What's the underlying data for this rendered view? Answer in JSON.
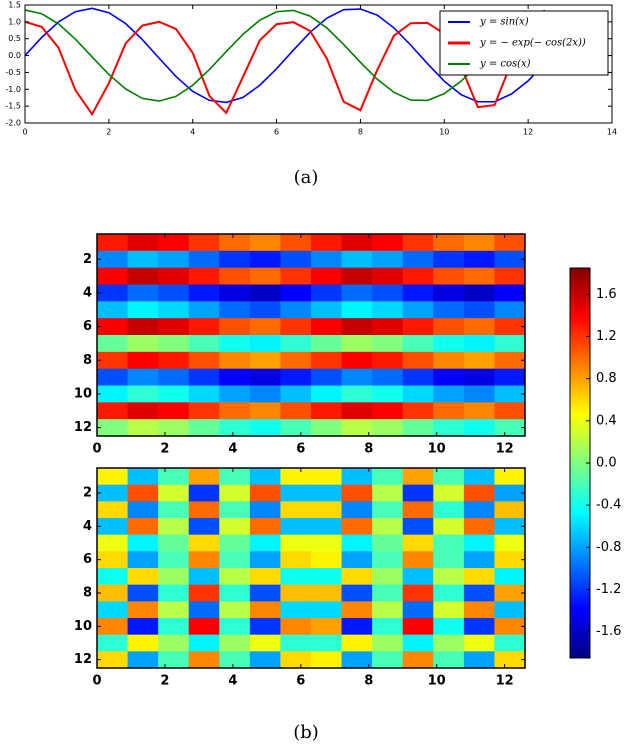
{
  "captions": [
    "(a)",
    "(b)"
  ],
  "chart_data": [
    {
      "type": "line",
      "x": [
        0,
        0.4,
        0.8,
        1.2,
        1.6,
        2.0,
        2.4,
        2.8,
        3.2,
        3.6,
        4.0,
        4.4,
        4.8,
        5.2,
        5.6,
        6.0,
        6.4,
        6.8,
        7.2,
        7.6,
        8.0,
        8.4,
        8.8,
        9.2,
        9.6,
        10.0,
        10.4,
        10.8,
        11.2,
        11.6,
        12.0,
        12.4
      ],
      "series": [
        {
          "name": "y = sin(x)",
          "color": "#0000ff",
          "values": [
            0,
            0.54,
            1.0,
            1.3,
            1.4,
            1.27,
            0.95,
            0.47,
            -0.08,
            -0.62,
            -1.06,
            -1.33,
            -1.39,
            -1.24,
            -0.88,
            -0.39,
            0.16,
            0.69,
            1.11,
            1.36,
            1.38,
            1.2,
            0.82,
            0.31,
            -0.24,
            -0.76,
            -1.16,
            -1.37,
            -1.37,
            -1.14,
            -0.75,
            -0.23
          ]
        },
        {
          "name": "y = − exp(− cos(2x))",
          "color": "#ff0000",
          "values": [
            1.0,
            0.85,
            0.23,
            -1.02,
            -1.74,
            -0.82,
            0.36,
            0.89,
            1.0,
            0.79,
            0.08,
            -1.2,
            -1.7,
            -0.63,
            0.45,
            0.93,
            0.99,
            0.73,
            -0.09,
            -1.37,
            -1.62,
            -0.43,
            0.59,
            0.96,
            0.97,
            0.65,
            -0.32,
            -1.53,
            -1.47,
            -0.21,
            0.67,
            0.97
          ]
        },
        {
          "name": "y = cos(x)",
          "color": "#008000",
          "values": [
            1.35,
            1.24,
            0.94,
            0.49,
            -0.04,
            -0.56,
            -0.99,
            -1.27,
            -1.35,
            -1.21,
            -0.88,
            -0.41,
            0.12,
            0.63,
            1.05,
            1.3,
            1.34,
            1.17,
            0.82,
            0.33,
            -0.2,
            -0.7,
            -1.09,
            -1.32,
            -1.33,
            -1.13,
            -0.76,
            -0.28,
            0.24,
            0.74,
            1.14,
            1.34
          ]
        }
      ],
      "xlim": [
        0,
        14
      ],
      "xticks": [
        0,
        2,
        4,
        6,
        8,
        10,
        12,
        14
      ],
      "ylim": [
        -2.0,
        1.5
      ],
      "yticks": [
        {
          "value": -2.0,
          "label": "-2.0"
        },
        -1.5,
        {
          "value": -1.0,
          "label": "-1.0"
        },
        -0.5,
        {
          "value": 0.0,
          "label": "0.0"
        },
        0.5,
        {
          "value": 1.0,
          "label": "1.0"
        },
        1.5
      ],
      "legend": "upper right"
    },
    {
      "type": "heatmap",
      "colormap": "jet",
      "zlim": [
        -1.85,
        1.85
      ],
      "x": [
        0.45,
        1.35,
        2.25,
        3.15,
        4.05,
        4.95,
        5.85,
        6.75,
        7.65,
        8.55,
        9.45,
        10.35,
        11.25,
        12.15
      ],
      "y": [
        1,
        2,
        3,
        4,
        5,
        6,
        7,
        8,
        9,
        10,
        11,
        12
      ],
      "xlim": [
        0,
        12.6
      ],
      "xticks": [
        0,
        2,
        4,
        6,
        8,
        10,
        12
      ],
      "ylim": [
        12.5,
        0.5
      ],
      "yticks": [
        2,
        4,
        6,
        8,
        10,
        12
      ],
      "z": [
        [
          1.3,
          1.5,
          1.4,
          1.2,
          1.0,
          0.9,
          1.1,
          1.3,
          1.5,
          1.4,
          1.2,
          1.0,
          0.9,
          1.1
        ],
        [
          -0.9,
          -0.7,
          -0.8,
          -1.0,
          -1.2,
          -1.3,
          -1.1,
          -0.9,
          -0.7,
          -0.8,
          -1.0,
          -1.2,
          -1.3,
          -1.1
        ],
        [
          1.4,
          1.6,
          1.5,
          1.3,
          1.1,
          1.0,
          1.2,
          1.4,
          1.6,
          1.5,
          1.3,
          1.1,
          1.0,
          1.2
        ],
        [
          -1.2,
          -1.0,
          -1.1,
          -1.3,
          -1.5,
          -1.6,
          -1.4,
          -1.2,
          -1.0,
          -1.1,
          -1.3,
          -1.5,
          -1.6,
          -1.4
        ],
        [
          -0.7,
          -0.5,
          -0.6,
          -0.8,
          -1.0,
          -1.1,
          -0.9,
          -0.7,
          -0.5,
          -0.6,
          -0.8,
          -1.0,
          -1.1,
          -0.9
        ],
        [
          1.4,
          1.6,
          1.5,
          1.3,
          1.1,
          1.0,
          1.2,
          1.4,
          1.6,
          1.5,
          1.3,
          1.1,
          1.0,
          1.2
        ],
        [
          -0.1,
          0.1,
          0,
          -0.2,
          -0.4,
          -0.5,
          -0.3,
          -0.1,
          0.1,
          0,
          -0.2,
          -0.4,
          -0.5,
          -0.3
        ],
        [
          1.2,
          1.4,
          1.3,
          1.1,
          0.9,
          0.8,
          1.0,
          1.2,
          1.4,
          1.3,
          1.1,
          0.9,
          0.8,
          1.0
        ],
        [
          -1.1,
          -0.9,
          -1.0,
          -1.2,
          -1.4,
          -1.5,
          -1.3,
          -1.1,
          -0.9,
          -1.0,
          -1.2,
          -1.4,
          -1.5,
          -1.3
        ],
        [
          -0.5,
          -0.3,
          -0.4,
          -0.6,
          -0.8,
          -0.9,
          -0.7,
          -0.5,
          -0.3,
          -0.4,
          -0.6,
          -0.8,
          -0.9,
          -0.7
        ],
        [
          1.3,
          1.5,
          1.4,
          1.2,
          1.0,
          0.9,
          1.1,
          1.3,
          1.5,
          1.4,
          1.2,
          1.0,
          0.9,
          1.1
        ],
        [
          0,
          0.2,
          0.1,
          -0.1,
          -0.3,
          -0.4,
          -0.2,
          0,
          0.2,
          0.1,
          -0.1,
          -0.3,
          -0.4,
          -0.2
        ]
      ]
    },
    {
      "type": "heatmap",
      "colormap": "jet",
      "zlim": [
        -1.85,
        1.85
      ],
      "x": [
        0.45,
        1.35,
        2.25,
        3.15,
        4.05,
        4.95,
        5.85,
        6.75,
        7.65,
        8.55,
        9.45,
        10.35,
        11.25,
        12.15
      ],
      "y": [
        1,
        2,
        3,
        4,
        5,
        6,
        7,
        8,
        9,
        10,
        11,
        12
      ],
      "xlim": [
        0,
        12.6
      ],
      "xticks": [
        0,
        2,
        4,
        6,
        8,
        10,
        12
      ],
      "ylim": [
        12.5,
        0.5
      ],
      "yticks": [
        2,
        4,
        6,
        8,
        10,
        12
      ],
      "z": [
        [
          0.5,
          -0.7,
          -0.2,
          0.8,
          -0.2,
          -0.7,
          0.5,
          0.5,
          -0.7,
          -0.2,
          0.8,
          -0.2,
          -0.7,
          0.5
        ],
        [
          -0.7,
          1.1,
          0.3,
          -1.2,
          0.3,
          1.1,
          -0.7,
          -0.7,
          1.1,
          0.2,
          -1.2,
          0.3,
          1.1,
          -0.8
        ],
        [
          0.6,
          -0.9,
          -0.2,
          1.0,
          -0.2,
          -0.9,
          0.6,
          0.6,
          -0.9,
          -0.2,
          1.0,
          -0.3,
          -0.9,
          0.7
        ],
        [
          -0.7,
          1.0,
          0.2,
          -1.1,
          0.3,
          1.0,
          -0.7,
          -0.7,
          1.0,
          0.2,
          -1.1,
          0.3,
          1.0,
          -0.7
        ],
        [
          0.4,
          -0.5,
          -0.1,
          0.6,
          -0.1,
          -0.5,
          0.4,
          0.4,
          -0.5,
          -0.1,
          0.6,
          -0.2,
          -0.5,
          0.4
        ],
        [
          0.6,
          -0.8,
          -0.2,
          0.9,
          -0.2,
          -0.8,
          0.6,
          0.5,
          -0.8,
          -0.2,
          0.9,
          -0.2,
          -0.8,
          0.6
        ],
        [
          -0.4,
          0.6,
          0.1,
          -0.7,
          0.2,
          0.6,
          -0.4,
          -0.4,
          0.6,
          0.1,
          -0.7,
          0.2,
          0.6,
          -0.5
        ],
        [
          0.7,
          -1.1,
          -0.3,
          1.2,
          -0.3,
          -1.1,
          0.7,
          0.7,
          -1.1,
          -0.2,
          1.2,
          -0.3,
          -1.1,
          0.8
        ],
        [
          -0.6,
          0.9,
          0.2,
          -1.0,
          0.2,
          0.9,
          -0.6,
          -0.6,
          0.9,
          0.2,
          -1.0,
          0.3,
          0.9,
          -0.7
        ],
        [
          0.9,
          -1.3,
          -0.3,
          1.4,
          -0.3,
          -1.2,
          0.9,
          0.8,
          -1.3,
          -0.3,
          1.4,
          -0.4,
          -1.2,
          0.9
        ],
        [
          -0.3,
          0.5,
          0.1,
          -0.5,
          0.1,
          0.4,
          -0.3,
          -0.3,
          0.5,
          0.1,
          -0.5,
          0.1,
          0.4,
          -0.3
        ],
        [
          0.6,
          -0.8,
          -0.2,
          0.9,
          -0.2,
          -0.8,
          0.6,
          0.5,
          -0.8,
          -0.2,
          0.9,
          -0.2,
          -0.8,
          0.6
        ]
      ]
    },
    {
      "type": "colorbar",
      "colormap": "jet",
      "ylim": [
        -1.85,
        1.85
      ],
      "yticks": [
        -1.6,
        -1.2,
        -0.8,
        -0.4,
        {
          "value": 0.0,
          "label": "0.0"
        },
        0.4,
        0.8,
        1.2,
        1.6
      ]
    }
  ]
}
